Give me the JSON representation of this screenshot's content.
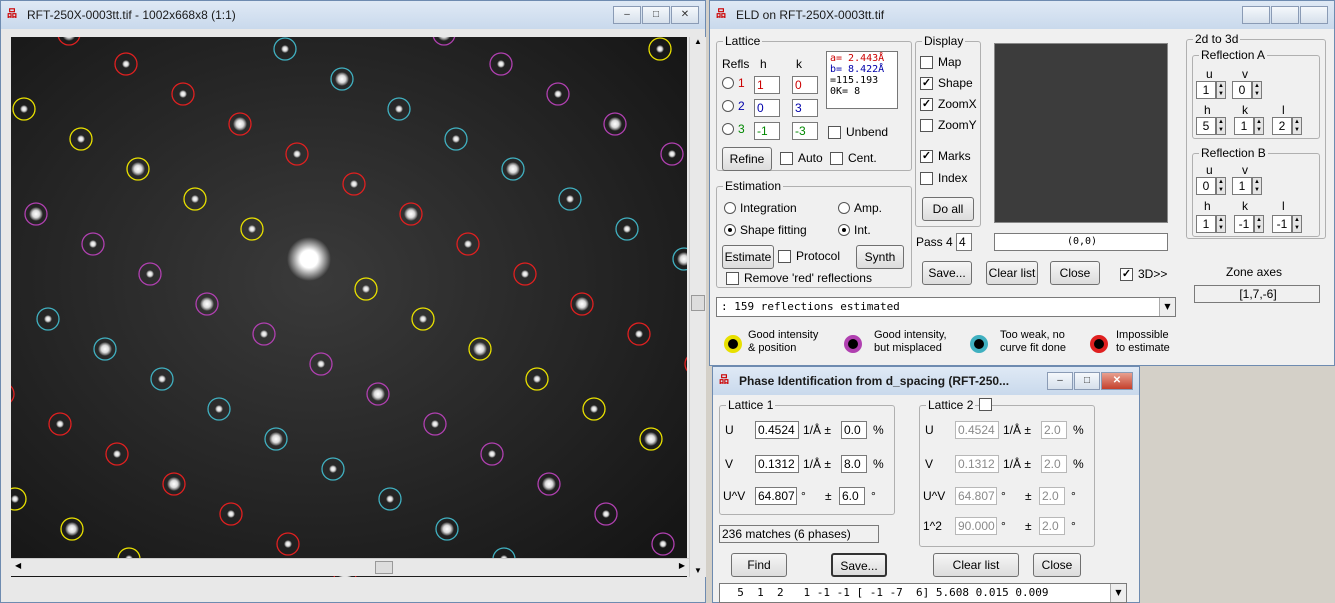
{
  "image_window": {
    "title": "RFT-250X-0003tt.tif - 1002x668x8 (1:1)",
    "buttons": [
      "–",
      "□",
      "✕"
    ]
  },
  "eld_window": {
    "title": "ELD on RFT-250X-0003tt.tif",
    "buttons": {
      "save": "Save...",
      "clear_list": "Clear list",
      "close": "Close",
      "threed": "3D>>"
    },
    "lattice": {
      "label": "Lattice",
      "refls": "Refls",
      "h": "h",
      "k": "k",
      "rows": [
        {
          "n": "1",
          "h": "1",
          "k": "0"
        },
        {
          "n": "2",
          "h": "0",
          "k": "3"
        },
        {
          "n": "3",
          "h": "-1",
          "k": "-3"
        }
      ],
      "params": [
        "a= 2.443Å",
        "b= 8.422Å",
        "=115.193",
        "0K=    8"
      ],
      "unbend": "Unbend",
      "refine": "Refine",
      "auto": "Auto",
      "cent": "Cent."
    },
    "display": {
      "label": "Display",
      "map": "Map",
      "shape": "Shape",
      "zoomx": "ZoomX",
      "zoomy": "ZoomY",
      "marks": "Marks",
      "index": "Index",
      "do_all": "Do all",
      "pass_label": "Pass 4",
      "pass_value": "4"
    },
    "preview_coord": "(0,0)",
    "estimation": {
      "label": "Estimation",
      "integration": "Integration",
      "amp": "Amp.",
      "shape_fitting": "Shape fitting",
      "int": "Int.",
      "estimate": "Estimate",
      "protocol": "Protocol",
      "synth": "Synth",
      "remove": "Remove 'red' reflections"
    },
    "status": ": 159 reflections estimated",
    "legend": [
      {
        "text": [
          "Good intensity",
          "& position"
        ],
        "color": "#e8e000"
      },
      {
        "text": [
          "Good intensity,",
          "but misplaced"
        ],
        "color": "#b040b0"
      },
      {
        "text": [
          "Too weak, no",
          "curve fit done"
        ],
        "color": "#40b0c0"
      },
      {
        "text": [
          "Impossible",
          "to estimate"
        ],
        "color": "#e02020"
      }
    ],
    "two_d_3d": {
      "label": "2d to 3d",
      "refl_a": "Reflection A",
      "refl_b": "Reflection B",
      "u": "u",
      "v": "v",
      "h": "h",
      "k": "k",
      "l": "l",
      "a_uv": [
        "1",
        "0"
      ],
      "a_hkl": [
        "5",
        "1",
        "2"
      ],
      "b_uv": [
        "0",
        "1"
      ],
      "b_hkl": [
        "1",
        "-1",
        "-1"
      ],
      "zone_axes": "Zone axes",
      "zone_value": "[1,7,-6]"
    }
  },
  "phase_window": {
    "title": "Phase Identification from d_spacing (RFT-250...",
    "buttons": [
      "–",
      "□",
      "✕"
    ],
    "lattice1": {
      "label": "Lattice 1",
      "u": "U",
      "v": "V",
      "uv": "U^V",
      "u_val": "0.4524",
      "u_unit": "1/Å ±",
      "u_tol": "0.0",
      "v_val": "0.1312",
      "v_tol": "8.0",
      "uv_val": "64.807",
      "uv_unit": "°",
      "uv_pm": "±",
      "uv_tol": "6.0",
      "pct": "%",
      "deg": "°"
    },
    "lattice2": {
      "label": "Lattice 2",
      "u_val": "0.4524",
      "u_tol": "2.0",
      "v_val": "0.1312",
      "v_tol": "2.0",
      "uv_val": "64.807",
      "uv_tol": "2.0",
      "angle_lbl": "1^2",
      "angle_val": "90.000",
      "angle_tol": "2.0"
    },
    "matches": "236 matches (6 phases)",
    "find": "Find",
    "save": "Save...",
    "clear_list": "Clear list",
    "close": "Close",
    "result": "  5  1  2   1 -1 -1 [ -1 -7  6] 5.608 0.015 0.009"
  },
  "colors": {
    "yellow": "#e8e000",
    "magenta": "#b040b0",
    "cyan": "#40b0c0",
    "red": "#e02020"
  }
}
